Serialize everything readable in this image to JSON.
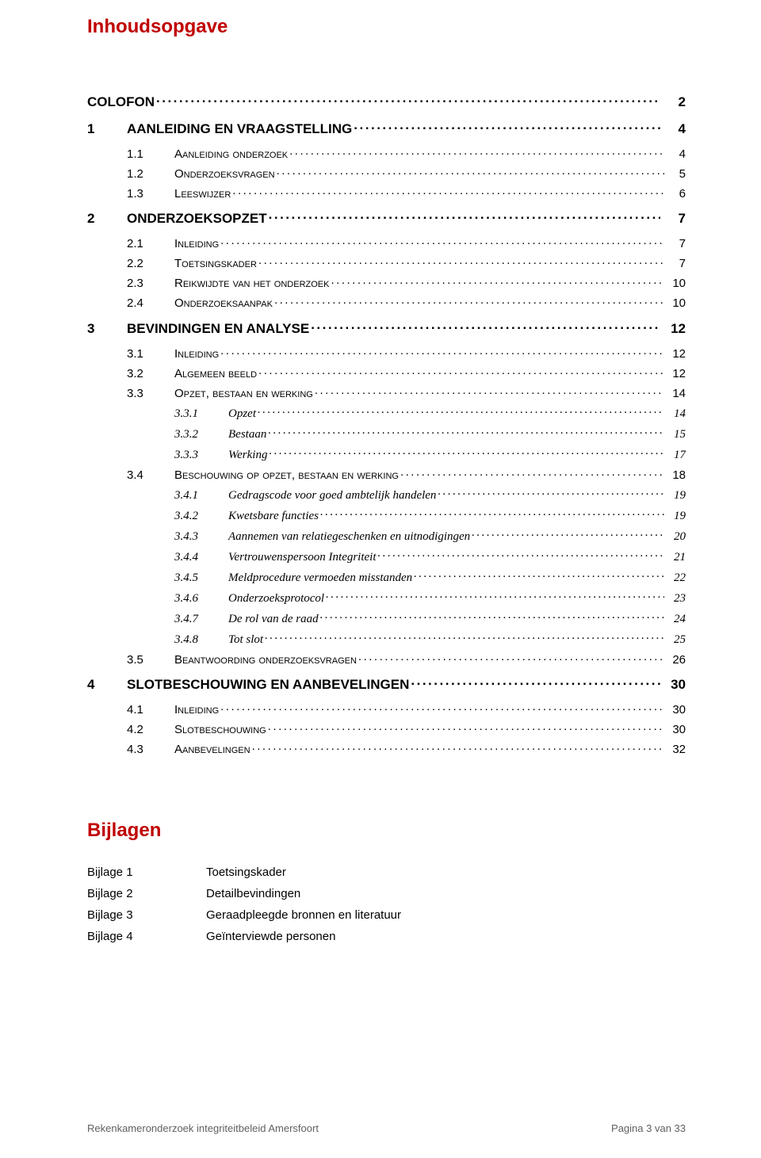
{
  "colors": {
    "title_color": "#c00000",
    "text_color": "#000000",
    "footer_color": "#606060",
    "background": "#ffffff"
  },
  "typography": {
    "title_fontsize": 24,
    "lvl1_fontsize": 17,
    "lvl2_fontsize": 15,
    "lvl3_fontsize": 15,
    "footer_fontsize": 13
  },
  "title": "Inhoudsopgave",
  "toc": [
    {
      "level": 1,
      "num": "",
      "label": "COLOFON",
      "page": "2",
      "nonum": true
    },
    {
      "level": 1,
      "num": "1",
      "label": "AANLEIDING EN VRAAGSTELLING",
      "page": "4"
    },
    {
      "level": 2,
      "num": "1.1",
      "label": "Aanleiding onderzoek",
      "page": "4"
    },
    {
      "level": 2,
      "num": "1.2",
      "label": "Onderzoeksvragen",
      "page": "5"
    },
    {
      "level": 2,
      "num": "1.3",
      "label": "Leeswijzer",
      "page": "6"
    },
    {
      "level": 1,
      "num": "2",
      "label": "ONDERZOEKSOPZET",
      "page": "7"
    },
    {
      "level": 2,
      "num": "2.1",
      "label": "Inleiding",
      "page": "7"
    },
    {
      "level": 2,
      "num": "2.2",
      "label": "Toetsingskader",
      "page": "7"
    },
    {
      "level": 2,
      "num": "2.3",
      "label": "Reikwijdte van het onderzoek",
      "page": "10"
    },
    {
      "level": 2,
      "num": "2.4",
      "label": "Onderzoeksaanpak",
      "page": "10"
    },
    {
      "level": 1,
      "num": "3",
      "label": "BEVINDINGEN EN ANALYSE",
      "page": "12"
    },
    {
      "level": 2,
      "num": "3.1",
      "label": "Inleiding",
      "page": "12"
    },
    {
      "level": 2,
      "num": "3.2",
      "label": "Algemeen beeld",
      "page": "12"
    },
    {
      "level": 2,
      "num": "3.3",
      "label": "Opzet, bestaan en werking",
      "page": "14"
    },
    {
      "level": 3,
      "num": "3.3.1",
      "label": "Opzet",
      "page": "14"
    },
    {
      "level": 3,
      "num": "3.3.2",
      "label": "Bestaan",
      "page": "15"
    },
    {
      "level": 3,
      "num": "3.3.3",
      "label": "Werking",
      "page": "17"
    },
    {
      "level": 2,
      "num": "3.4",
      "label": "Beschouwing op opzet, bestaan en werking",
      "page": "18"
    },
    {
      "level": 3,
      "num": "3.4.1",
      "label": "Gedragscode voor goed ambtelijk handelen",
      "page": "19"
    },
    {
      "level": 3,
      "num": "3.4.2",
      "label": "Kwetsbare functies",
      "page": "19"
    },
    {
      "level": 3,
      "num": "3.4.3",
      "label": "Aannemen van relatiegeschenken en uitnodigingen",
      "page": "20"
    },
    {
      "level": 3,
      "num": "3.4.4",
      "label": "Vertrouwenspersoon Integriteit",
      "page": "21"
    },
    {
      "level": 3,
      "num": "3.4.5",
      "label": "Meldprocedure vermoeden misstanden",
      "page": "22"
    },
    {
      "level": 3,
      "num": "3.4.6",
      "label": "Onderzoeksprotocol",
      "page": "23"
    },
    {
      "level": 3,
      "num": "3.4.7",
      "label": "De rol van de raad",
      "page": "24"
    },
    {
      "level": 3,
      "num": "3.4.8",
      "label": "Tot slot",
      "page": "25"
    },
    {
      "level": 2,
      "num": "3.5",
      "label": "Beantwoording onderzoeksvragen",
      "page": "26"
    },
    {
      "level": 1,
      "num": "4",
      "label": "SLOTBESCHOUWING EN AANBEVELINGEN",
      "page": "30"
    },
    {
      "level": 2,
      "num": "4.1",
      "label": "Inleiding",
      "page": "30"
    },
    {
      "level": 2,
      "num": "4.2",
      "label": "Slotbeschouwing",
      "page": "30"
    },
    {
      "level": 2,
      "num": "4.3",
      "label": "Aanbevelingen",
      "page": "32"
    }
  ],
  "bijlagen": {
    "heading": "Bijlagen",
    "items": [
      {
        "label": "Bijlage 1",
        "desc": "Toetsingskader"
      },
      {
        "label": "Bijlage 2",
        "desc": "Detailbevindingen"
      },
      {
        "label": "Bijlage 3",
        "desc": "Geraadpleegde bronnen en literatuur"
      },
      {
        "label": "Bijlage 4",
        "desc": "Geïnterviewde personen"
      }
    ]
  },
  "footer": {
    "left": "Rekenkameronderzoek integriteitbeleid Amersfoort",
    "right": "Pagina 3 van 33"
  }
}
